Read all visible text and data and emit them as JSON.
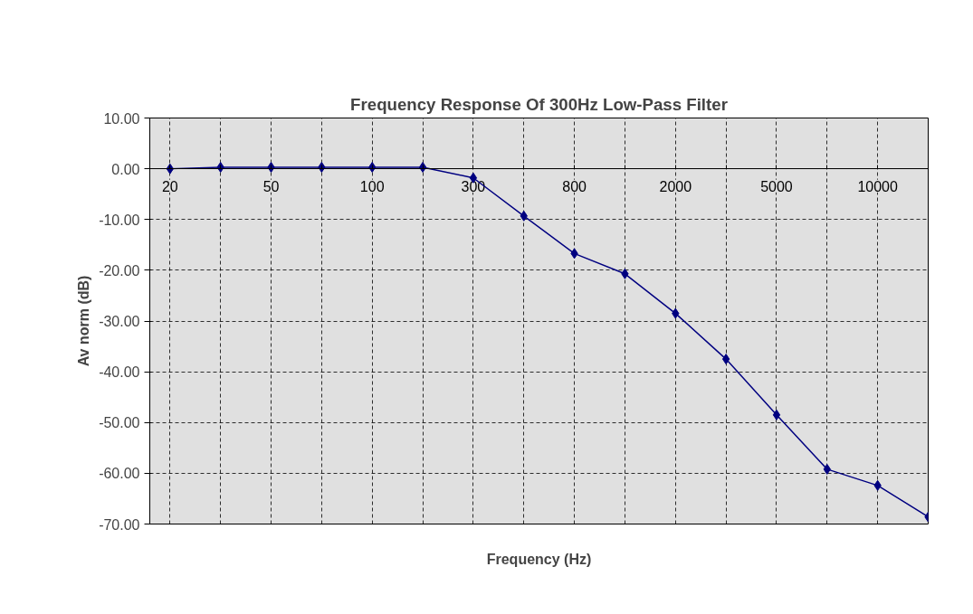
{
  "chart_data": {
    "type": "line",
    "title": "Frequency Response Of 300Hz Low-Pass Filter",
    "xlabel": "Frequency (Hz)",
    "ylabel": "Av norm (dB)",
    "categories": [
      "20",
      null,
      "50",
      null,
      "100",
      null,
      "300",
      null,
      "800",
      null,
      "2000",
      null,
      "5000",
      null,
      "10000",
      null
    ],
    "series": [
      {
        "color": "#000080",
        "values": [
          0.0,
          0.3,
          0.3,
          0.3,
          0.3,
          0.3,
          -1.8,
          -9.3,
          -16.7,
          -20.7,
          -28.5,
          -37.5,
          -48.5,
          -59.2,
          -62.4,
          -68.6
        ]
      }
    ],
    "ylim": [
      -70,
      10
    ],
    "yticks": [
      {
        "value": 10,
        "label": "10.00"
      },
      {
        "value": 0,
        "label": "0.00"
      },
      {
        "value": -10,
        "label": "-10.00"
      },
      {
        "value": -20,
        "label": "-20.00"
      },
      {
        "value": -30,
        "label": "-30.00"
      },
      {
        "value": -40,
        "label": "-40.00"
      },
      {
        "value": -50,
        "label": "-50.00"
      },
      {
        "value": -60,
        "label": "-60.00"
      },
      {
        "value": -70,
        "label": "-70.00"
      }
    ],
    "grid": true,
    "marker": "diamond",
    "line_style": "solid"
  }
}
